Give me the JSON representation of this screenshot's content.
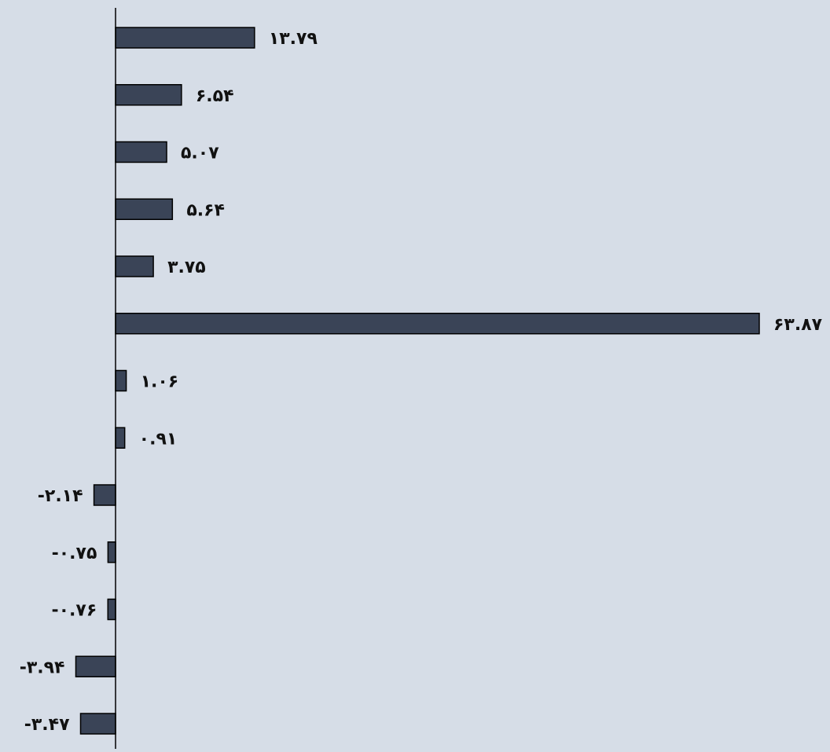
{
  "chart_data": {
    "type": "bar",
    "orientation": "horizontal",
    "color": "#3a4457",
    "values": [
      13.79,
      6.54,
      5.07,
      5.64,
      3.75,
      63.87,
      1.06,
      0.91,
      -2.14,
      -0.75,
      -0.76,
      -3.94,
      -3.47
    ],
    "value_labels": [
      "۱۳.۷۹",
      "۶.۵۴",
      "۵.۰۷",
      "۵.۶۴",
      "۳.۷۵",
      "۶۳.۸۷",
      "۱.۰۶",
      "۰.۹۱",
      "-۲.۱۴",
      "-۰.۷۵",
      "-۰.۷۶",
      "-۳.۹۴",
      "-۳.۴۷"
    ]
  }
}
